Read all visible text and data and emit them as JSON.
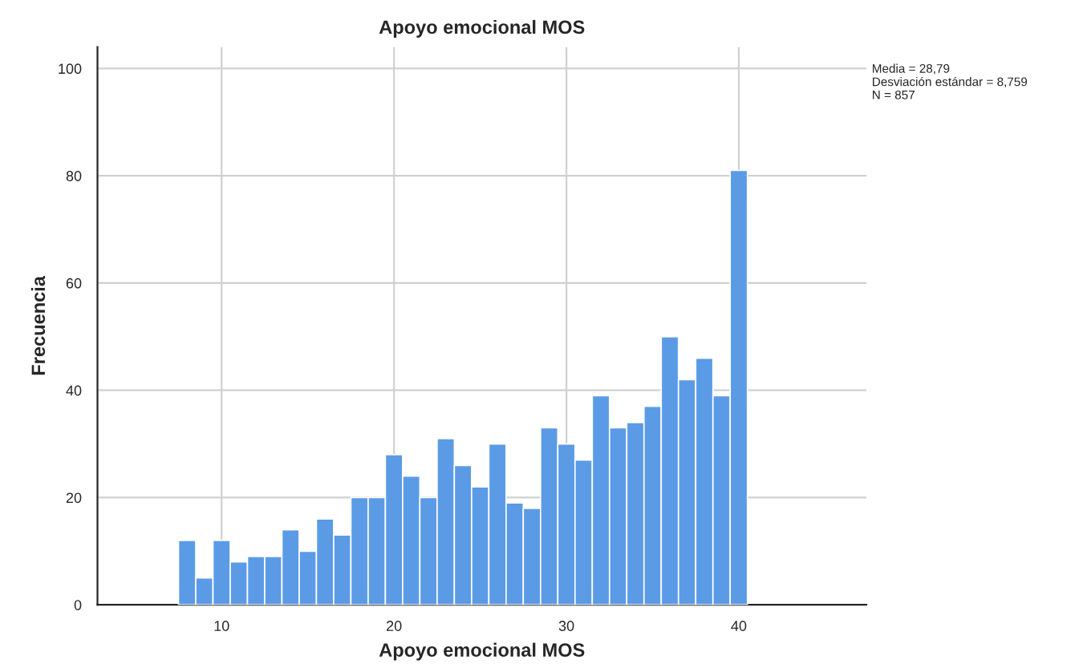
{
  "chart_data": {
    "type": "histogram",
    "title": "Apoyo emocional MOS",
    "xlabel": "Apoyo emocional MOS",
    "ylabel": "Frecuencia",
    "bins": [
      7.5,
      8.5,
      9.5,
      10.5,
      11.5,
      12.5,
      13.5,
      14.5,
      15.5,
      16.5,
      17.5,
      18.5,
      19.5,
      20.5,
      21.5,
      22.5,
      23.5,
      24.5,
      25.5,
      26.5,
      27.5,
      28.5,
      29.5,
      30.5,
      31.5,
      32.5,
      33.5,
      34.5,
      35.5,
      36.5,
      37.5,
      38.5,
      39.5,
      40.5
    ],
    "values": [
      12,
      5,
      12,
      8,
      9,
      9,
      14,
      10,
      16,
      13,
      20,
      20,
      28,
      24,
      20,
      31,
      26,
      22,
      30,
      19,
      18,
      33,
      30,
      27,
      39,
      33,
      34,
      37,
      50,
      42,
      46,
      39,
      81
    ],
    "color": "#5b9be6",
    "xlim": [
      2.8,
      47.4
    ],
    "xticks": [
      10,
      20,
      30,
      40
    ],
    "ylim": [
      0,
      104
    ],
    "yticks": [
      0,
      20,
      40,
      60,
      80,
      100
    ],
    "grid": true,
    "annotations": [
      "Media = 28,79\nDesviación estándar = 8,759\nN = 857"
    ]
  }
}
